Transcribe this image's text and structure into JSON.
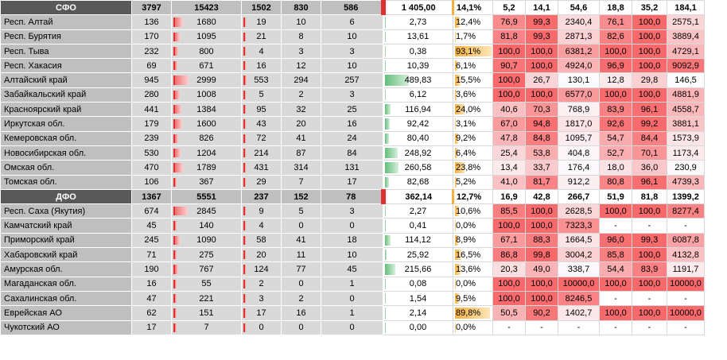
{
  "colors": {
    "heat_high": "#f8696b",
    "heat_low": "#fcfcff",
    "bar_red": "#f07070",
    "bar_green": "#63be7b",
    "bar_orange": "#f5b041"
  },
  "groups": [
    {
      "header": {
        "name": "СФО",
        "c1": "3797",
        "c2": "15423",
        "c3": "1502",
        "c4": "830",
        "c5": "586",
        "val": "1 405,00",
        "pct": "14,1%",
        "h": [
          "5,2",
          "14,1",
          "54,6",
          "18,8",
          "35,2",
          "184,1"
        ]
      },
      "rows": [
        {
          "name": "Респ. Алтай",
          "c1": "136",
          "c2": "1680",
          "c2f": 0.11,
          "c3": "19",
          "c3f": 0.0,
          "c4": "10",
          "c5": "6",
          "val": "2,73",
          "valf": 0.0,
          "pct": "12,4%",
          "pctf": 0.12,
          "h": [
            "76,9",
            "99,3",
            "2340,4",
            "76,1",
            "100,0",
            "2575,1"
          ],
          "hv": [
            0.77,
            0.99,
            0.23,
            0.76,
            1.0,
            0.26
          ]
        },
        {
          "name": "Респ. Бурятия",
          "c1": "170",
          "c2": "1095",
          "c2f": 0.07,
          "c3": "21",
          "c3f": 0.0,
          "c4": "8",
          "c5": "10",
          "val": "13,61",
          "valf": 0.0,
          "pct": "1,7%",
          "pctf": 0.02,
          "h": [
            "81,8",
            "99,3",
            "2871,3",
            "82,6",
            "100,0",
            "3889,4"
          ],
          "hv": [
            0.82,
            0.99,
            0.29,
            0.83,
            1.0,
            0.39
          ]
        },
        {
          "name": "Респ. Тыва",
          "c1": "232",
          "c2": "800",
          "c2f": 0.05,
          "c3": "4",
          "c3f": 0.0,
          "c4": "3",
          "c5": "3",
          "val": "0,38",
          "valf": 0.0,
          "pct": "93,1%",
          "pctf": 0.93,
          "h": [
            "100,0",
            "100,0",
            "6381,2",
            "100,0",
            "100,0",
            "4729,1"
          ],
          "hv": [
            1.0,
            1.0,
            0.64,
            1.0,
            1.0,
            0.47
          ]
        },
        {
          "name": "Респ. Хакасия",
          "c1": "69",
          "c2": "671",
          "c2f": 0.04,
          "c3": "16",
          "c3f": 0.0,
          "c4": "12",
          "c5": "10",
          "val": "10,39",
          "valf": 0.0,
          "pct": "6,1%",
          "pctf": 0.06,
          "h": [
            "90,7",
            "100,0",
            "4924,0",
            "96,9",
            "100,0",
            "9092,9"
          ],
          "hv": [
            0.91,
            1.0,
            0.49,
            0.97,
            1.0,
            0.91
          ]
        },
        {
          "name": "Алтайский край",
          "c1": "945",
          "c2": "2999",
          "c2f": 0.19,
          "c3": "553",
          "c3f": 0.04,
          "c4": "294",
          "c5": "257",
          "val": "489,83",
          "valf": 0.35,
          "pct": "15,5%",
          "pctf": 0.15,
          "h": [
            "100,0",
            "26,7",
            "130,1",
            "12,8",
            "29,8",
            "146,5"
          ],
          "hv": [
            1.0,
            0.27,
            0.01,
            0.13,
            0.3,
            0.01
          ]
        },
        {
          "name": "Забайкальский край",
          "c1": "280",
          "c2": "1008",
          "c2f": 0.07,
          "c3": "5",
          "c3f": 0.0,
          "c4": "2",
          "c5": "3",
          "val": "6,12",
          "valf": 0.0,
          "pct": "3,6%",
          "pctf": 0.04,
          "h": [
            "100,0",
            "100,0",
            "6577,0",
            "100,0",
            "100,0",
            "4881,9"
          ],
          "hv": [
            1.0,
            1.0,
            0.66,
            1.0,
            1.0,
            0.49
          ]
        },
        {
          "name": "Красноярский край",
          "c1": "441",
          "c2": "1384",
          "c2f": 0.09,
          "c3": "95",
          "c3f": 0.01,
          "c4": "32",
          "c5": "25",
          "val": "116,94",
          "valf": 0.08,
          "pct": "24,0%",
          "pctf": 0.24,
          "h": [
            "40,6",
            "70,3",
            "768,9",
            "83,9",
            "96,1",
            "4558,7"
          ],
          "hv": [
            0.41,
            0.7,
            0.08,
            0.84,
            0.96,
            0.46
          ]
        },
        {
          "name": "Иркутская обл.",
          "c1": "179",
          "c2": "1600",
          "c2f": 0.1,
          "c3": "43",
          "c3f": 0.0,
          "c4": "20",
          "c5": "16",
          "val": "92,42",
          "valf": 0.07,
          "pct": "3,1%",
          "pctf": 0.03,
          "h": [
            "67,0",
            "94,8",
            "1817,0",
            "92,6",
            "99,2",
            "3881,1"
          ],
          "hv": [
            0.67,
            0.95,
            0.18,
            0.93,
            0.99,
            0.39
          ]
        },
        {
          "name": "Кемеровская обл.",
          "c1": "239",
          "c2": "826",
          "c2f": 0.05,
          "c3": "72",
          "c3f": 0.0,
          "c4": "41",
          "c5": "24",
          "val": "80,40",
          "valf": 0.06,
          "pct": "9,2%",
          "pctf": 0.09,
          "h": [
            "47,8",
            "84,8",
            "1095,7",
            "54,7",
            "84,4",
            "1573,9"
          ],
          "hv": [
            0.48,
            0.85,
            0.11,
            0.55,
            0.84,
            0.16
          ]
        },
        {
          "name": "Новосибирская обл.",
          "c1": "530",
          "c2": "1204",
          "c2f": 0.08,
          "c3": "214",
          "c3f": 0.01,
          "c4": "87",
          "c5": "84",
          "val": "248,92",
          "valf": 0.18,
          "pct": "6,4%",
          "pctf": 0.06,
          "h": [
            "25,4",
            "53,8",
            "404,8",
            "52,7",
            "70,1",
            "1173,4"
          ],
          "hv": [
            0.25,
            0.54,
            0.04,
            0.53,
            0.7,
            0.12
          ]
        },
        {
          "name": "Омская обл.",
          "c1": "470",
          "c2": "1789",
          "c2f": 0.12,
          "c3": "431",
          "c3f": 0.03,
          "c4": "314",
          "c5": "131",
          "val": "260,58",
          "valf": 0.19,
          "pct": "23,8%",
          "pctf": 0.24,
          "h": [
            "13,4",
            "33,7",
            "176,4",
            "18,0",
            "36,0",
            "230,9"
          ],
          "hv": [
            0.13,
            0.34,
            0.02,
            0.18,
            0.36,
            0.02
          ]
        },
        {
          "name": "Томская обл.",
          "c1": "106",
          "c2": "367",
          "c2f": 0.02,
          "c3": "29",
          "c3f": 0.0,
          "c4": "7",
          "c5": "17",
          "val": "82,68",
          "valf": 0.06,
          "pct": "5,2%",
          "pctf": 0.05,
          "h": [
            "41,0",
            "81,7",
            "912,2",
            "80,8",
            "96,1",
            "4739,3"
          ],
          "hv": [
            0.41,
            0.82,
            0.09,
            0.81,
            0.96,
            0.47
          ]
        }
      ]
    },
    {
      "header": {
        "name": "ДФО",
        "c1": "1367",
        "c2": "5551",
        "c3": "237",
        "c4": "152",
        "c5": "78",
        "val": "362,14",
        "pct": "12,7%",
        "h": [
          "16,9",
          "42,8",
          "266,7",
          "51,9",
          "81,8",
          "1399,2"
        ]
      },
      "rows": [
        {
          "name": "Респ. Саха (Якутия)",
          "c1": "674",
          "c2": "2845",
          "c2f": 0.18,
          "c3": "9",
          "c3f": 0.0,
          "c4": "5",
          "c5": "3",
          "val": "2,27",
          "valf": 0.0,
          "pct": "10,6%",
          "pctf": 0.11,
          "h": [
            "85,5",
            "100,0",
            "2628,5",
            "100,0",
            "100,0",
            "8277,4"
          ],
          "hv": [
            0.86,
            1.0,
            0.26,
            1.0,
            1.0,
            0.83
          ]
        },
        {
          "name": "Камчатский край",
          "c1": "45",
          "c2": "140",
          "c2f": 0.01,
          "c3": "4",
          "c3f": 0.0,
          "c4": "0",
          "c5": "0",
          "val": "0,41",
          "valf": 0.0,
          "pct": "0,0%",
          "pctf": 0.0,
          "h": [
            "100,0",
            "100,0",
            "7323,3",
            "-",
            "-",
            "-"
          ],
          "hv": [
            1.0,
            1.0,
            0.73,
            -1,
            -1,
            -1
          ]
        },
        {
          "name": "Приморский край",
          "c1": "245",
          "c2": "1090",
          "c2f": 0.07,
          "c3": "58",
          "c3f": 0.0,
          "c4": "41",
          "c5": "18",
          "val": "114,12",
          "valf": 0.08,
          "pct": "8,9%",
          "pctf": 0.09,
          "h": [
            "67,1",
            "88,3",
            "1664,5",
            "96,0",
            "99,3",
            "6087,8"
          ],
          "hv": [
            0.67,
            0.88,
            0.17,
            0.96,
            0.99,
            0.61
          ]
        },
        {
          "name": "Хабаровский край",
          "c1": "71",
          "c2": "275",
          "c2f": 0.02,
          "c3": "20",
          "c3f": 0.0,
          "c4": "11",
          "c5": "10",
          "val": "25,92",
          "valf": 0.02,
          "pct": "16,5%",
          "pctf": 0.17,
          "h": [
            "86,8",
            "99,8",
            "3004,2",
            "85,8",
            "100,0",
            "4132,8"
          ],
          "hv": [
            0.87,
            1.0,
            0.3,
            0.86,
            1.0,
            0.41
          ]
        },
        {
          "name": "Амурская обл.",
          "c1": "190",
          "c2": "767",
          "c2f": 0.05,
          "c3": "124",
          "c3f": 0.0,
          "c4": "77",
          "c5": "45",
          "val": "215,66",
          "valf": 0.15,
          "pct": "13,6%",
          "pctf": 0.14,
          "h": [
            "20,3",
            "49,0",
            "338,7",
            "54,4",
            "83,9",
            "1191,7"
          ],
          "hv": [
            0.2,
            0.49,
            0.03,
            0.54,
            0.84,
            0.12
          ]
        },
        {
          "name": "Магаданская обл.",
          "c1": "16",
          "c2": "55",
          "c2f": 0.0,
          "c3": "2",
          "c3f": 0.0,
          "c4": "0",
          "c5": "1",
          "val": "0,08",
          "valf": 0.0,
          "pct": "0,0%",
          "pctf": 0.0,
          "h": [
            "100,0",
            "100,0",
            "10000,0",
            "100,0",
            "100,0",
            "10000,0"
          ],
          "hv": [
            1.0,
            1.0,
            1.0,
            1.0,
            1.0,
            1.0
          ]
        },
        {
          "name": "Сахалинская обл.",
          "c1": "47",
          "c2": "221",
          "c2f": 0.01,
          "c3": "3",
          "c3f": 0.0,
          "c4": "2",
          "c5": "0",
          "val": "1,54",
          "valf": 0.0,
          "pct": "9,5%",
          "pctf": 0.1,
          "h": [
            "100,0",
            "100,0",
            "8246,5",
            "-",
            "-",
            "-"
          ],
          "hv": [
            1.0,
            1.0,
            0.82,
            -1,
            -1,
            -1
          ]
        },
        {
          "name": "Еврейская АО",
          "c1": "62",
          "c2": "151",
          "c2f": 0.01,
          "c3": "17",
          "c3f": 0.0,
          "c4": "16",
          "c5": "1",
          "val": "2,14",
          "valf": 0.0,
          "pct": "89,8%",
          "pctf": 0.9,
          "h": [
            "50,5",
            "90,2",
            "1402,7",
            "100,0",
            "100,0",
            "10000,0"
          ],
          "hv": [
            0.5,
            0.9,
            0.14,
            1.0,
            1.0,
            1.0
          ]
        },
        {
          "name": "Чукотский АО",
          "c1": "17",
          "c2": "7",
          "c2f": 0.0,
          "c3": "0",
          "c3f": 0.0,
          "c4": "0",
          "c5": "0",
          "val": "0,00",
          "valf": 0.0,
          "pct": "0,0%",
          "pctf": 0.0,
          "h": [
            "-",
            "-",
            "-",
            "-",
            "-",
            "-"
          ],
          "hv": [
            -1,
            -1,
            -1,
            -1,
            -1,
            -1
          ]
        }
      ]
    }
  ]
}
